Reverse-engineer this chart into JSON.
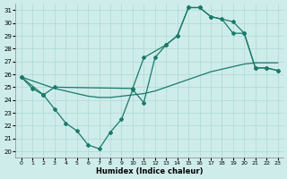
{
  "xlabel": "Humidex (Indice chaleur)",
  "bg_color": "#ceecea",
  "grid_color": "#aed8d4",
  "line_color": "#1a7a6a",
  "xlim": [
    -0.5,
    23.5
  ],
  "ylim": [
    19.5,
    31.5
  ],
  "xticks": [
    0,
    1,
    2,
    3,
    4,
    5,
    6,
    7,
    8,
    9,
    10,
    11,
    12,
    13,
    14,
    15,
    16,
    17,
    18,
    19,
    20,
    21,
    22,
    23
  ],
  "yticks": [
    20,
    21,
    22,
    23,
    24,
    25,
    26,
    27,
    28,
    29,
    30,
    31
  ],
  "line1_no_markers": {
    "x": [
      0,
      1,
      2,
      3,
      4,
      5,
      6,
      7,
      8,
      9,
      10,
      11,
      12,
      13,
      14,
      15,
      16,
      17,
      18,
      19,
      20,
      21,
      22,
      23
    ],
    "y": [
      25.8,
      25.5,
      25.2,
      24.9,
      24.7,
      24.5,
      24.3,
      24.2,
      24.2,
      24.3,
      24.4,
      24.5,
      24.7,
      25.0,
      25.3,
      25.6,
      25.9,
      26.2,
      26.4,
      26.6,
      26.8,
      26.9,
      26.9,
      26.9
    ]
  },
  "line2_with_markers": {
    "x": [
      0,
      1,
      2,
      3,
      4,
      5,
      6,
      7,
      8,
      9,
      10,
      11,
      12,
      13,
      14,
      15,
      16,
      17,
      18,
      19,
      20,
      21,
      22,
      23
    ],
    "y": [
      25.8,
      24.9,
      24.4,
      23.3,
      22.2,
      21.6,
      20.5,
      20.2,
      21.5,
      22.5,
      24.8,
      23.8,
      27.3,
      28.3,
      29.0,
      31.2,
      31.2,
      30.5,
      30.3,
      29.2,
      29.2,
      26.5,
      26.5,
      26.3
    ]
  },
  "line3_with_markers": {
    "x": [
      0,
      2,
      3,
      10,
      11,
      13,
      14,
      15,
      16,
      17,
      19,
      20,
      21,
      22,
      23
    ],
    "y": [
      25.8,
      24.4,
      25.0,
      24.9,
      27.3,
      28.3,
      29.0,
      31.2,
      31.2,
      30.5,
      30.1,
      29.2,
      26.5,
      26.5,
      26.3
    ]
  }
}
